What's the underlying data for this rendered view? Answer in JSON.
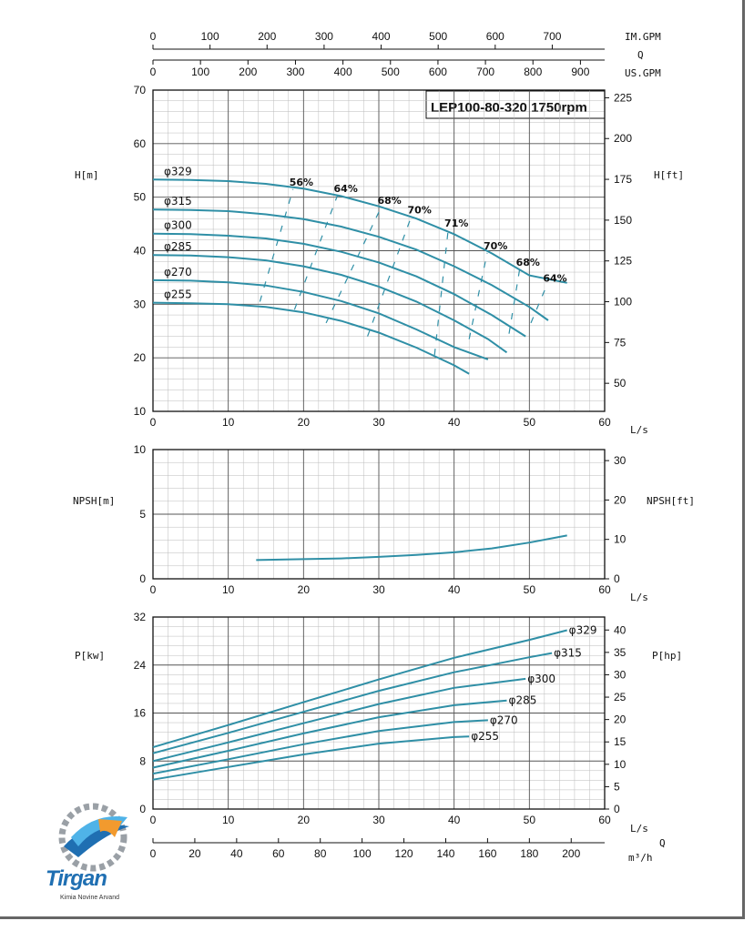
{
  "title": "LEP100-80-320 1750rpm",
  "logo": {
    "name": "Tirgan",
    "subtitle": "Kimia Novine Arvand",
    "colors": {
      "blue": "#1f6fb2",
      "orange": "#f29a2e",
      "gray": "#9aa0a6"
    }
  },
  "axis_labels": {
    "im_gpm": "IM.GPM",
    "q_top": "Q",
    "us_gpm": "US.GPM",
    "h_m": "H[m]",
    "h_ft": "H[ft]",
    "npsh_m": "NPSH[m]",
    "npsh_ft": "NPSH[ft]",
    "p_kw": "P[kw]",
    "p_hp": "P[hp]",
    "ls_1": "L/s",
    "ls_2": "L/s",
    "ls_3": "L/s",
    "m3h": "m³/h",
    "q_bottom": "Q"
  },
  "colors": {
    "curve": "#2f8fa6",
    "grid": "#888888",
    "axis": "#111111"
  },
  "chart_data": [
    {
      "type": "line",
      "panel": "head",
      "title": "LEP100-80-320 1750rpm",
      "xlabel": "L/s",
      "ylabel": "H[m]",
      "y2label": "H[ft]",
      "xlim": [
        0,
        60
      ],
      "ylim": [
        10,
        70
      ],
      "y2lim": [
        32.8,
        229.7
      ],
      "x_ticks": [
        0,
        10,
        20,
        30,
        40,
        50,
        60
      ],
      "y_ticks": [
        10,
        20,
        30,
        40,
        50,
        60,
        70
      ],
      "y2_ticks": [
        50,
        75,
        100,
        125,
        150,
        175,
        200,
        225
      ],
      "top_axes": {
        "im_gpm_ticks": [
          0,
          100,
          200,
          300,
          400,
          500,
          600,
          700
        ],
        "us_gpm_ticks": [
          0,
          100,
          200,
          300,
          400,
          500,
          600,
          700,
          800,
          900
        ]
      },
      "grid": true,
      "series": [
        {
          "name": "φ329",
          "x": [
            0,
            5,
            10,
            15,
            20,
            25,
            30,
            35,
            40,
            45,
            50,
            55
          ],
          "y": [
            53.3,
            53.2,
            53.0,
            52.5,
            51.6,
            50.2,
            48.3,
            46.0,
            43.1,
            39.5,
            35.4,
            34.0
          ]
        },
        {
          "name": "φ315",
          "x": [
            0,
            5,
            10,
            15,
            20,
            25,
            30,
            35,
            40,
            45,
            50,
            52.5
          ],
          "y": [
            47.7,
            47.6,
            47.4,
            46.8,
            45.9,
            44.5,
            42.6,
            40.2,
            37.1,
            33.6,
            29.5,
            27.0
          ]
        },
        {
          "name": "φ300",
          "x": [
            0,
            5,
            10,
            15,
            20,
            25,
            30,
            35,
            40,
            45,
            49.5
          ],
          "y": [
            43.2,
            43.1,
            42.8,
            42.3,
            41.3,
            39.8,
            37.8,
            35.2,
            31.9,
            28.0,
            24.0
          ]
        },
        {
          "name": "φ285",
          "x": [
            0,
            5,
            10,
            15,
            20,
            25,
            30,
            35,
            40,
            44.5,
            47
          ],
          "y": [
            39.2,
            39.1,
            38.8,
            38.2,
            37.1,
            35.5,
            33.3,
            30.5,
            27.0,
            23.5,
            21.0
          ]
        },
        {
          "name": "φ270",
          "x": [
            0,
            5,
            10,
            15,
            20,
            25,
            30,
            35,
            40,
            44.5
          ],
          "y": [
            34.5,
            34.4,
            34.1,
            33.5,
            32.3,
            30.6,
            28.3,
            25.3,
            22.0,
            19.7
          ]
        },
        {
          "name": "φ255",
          "x": [
            0,
            5,
            10,
            15,
            20,
            25,
            30,
            35,
            40,
            42
          ],
          "y": [
            30.3,
            30.2,
            30.0,
            29.5,
            28.5,
            26.9,
            24.7,
            21.9,
            18.6,
            17.0
          ]
        }
      ],
      "efficiency_lines": [
        {
          "label": "56%",
          "from": [
            14.2,
            30.5
          ],
          "to": [
            18.6,
            51.5
          ]
        },
        {
          "label": "64%",
          "from": [
            18.8,
            29.0
          ],
          "to": [
            24.5,
            50.3
          ]
        },
        {
          "label": "68%",
          "from": [
            23.0,
            26.5
          ],
          "to": [
            30.3,
            48.1
          ]
        },
        {
          "label": "70%",
          "from": [
            28.5,
            24.0
          ],
          "to": [
            34.3,
            46.3
          ]
        },
        {
          "label": "71%",
          "from": [
            37.4,
            20.5
          ],
          "to": [
            39.2,
            43.8
          ]
        },
        {
          "label": "70%",
          "from": [
            42.0,
            23.5
          ],
          "to": [
            44.4,
            39.6
          ]
        },
        {
          "label": "68%",
          "from": [
            47.3,
            24.5
          ],
          "to": [
            48.7,
            36.5
          ]
        },
        {
          "label": "64%",
          "from": [
            50.2,
            26.5
          ],
          "to": [
            52.3,
            33.5
          ]
        }
      ]
    },
    {
      "type": "line",
      "panel": "npsh",
      "xlabel": "L/s",
      "ylabel": "NPSH[m]",
      "y2label": "NPSH[ft]",
      "xlim": [
        0,
        60
      ],
      "ylim": [
        0,
        10
      ],
      "y2lim": [
        0,
        32.8
      ],
      "x_ticks": [
        0,
        10,
        20,
        30,
        40,
        50,
        60
      ],
      "y_ticks": [
        0,
        5,
        10
      ],
      "y2_ticks": [
        0,
        10,
        20,
        30
      ],
      "grid": true,
      "series": [
        {
          "x": [
            13.7,
            20,
            25,
            30,
            35,
            40,
            45,
            50,
            55
          ],
          "y": [
            1.45,
            1.52,
            1.58,
            1.7,
            1.85,
            2.05,
            2.35,
            2.8,
            3.35
          ]
        }
      ]
    },
    {
      "type": "line",
      "panel": "power",
      "xlabel": "L/s",
      "ylabel": "P[kw]",
      "y2label": "P[hp]",
      "x2label": "m³/h",
      "xlim": [
        0,
        60
      ],
      "ylim": [
        0,
        32
      ],
      "y2lim": [
        0,
        42.9
      ],
      "x_ticks": [
        0,
        10,
        20,
        30,
        40,
        50,
        60
      ],
      "x2_ticks": [
        0,
        20,
        40,
        60,
        80,
        100,
        120,
        140,
        160,
        180,
        200
      ],
      "y_ticks": [
        0,
        8,
        16,
        24,
        32
      ],
      "y2_ticks": [
        0,
        5,
        10,
        15,
        20,
        25,
        30,
        35,
        40
      ],
      "grid": true,
      "series": [
        {
          "name": "φ329",
          "x": [
            0,
            10,
            20,
            30,
            40,
            50,
            55
          ],
          "y": [
            10.3,
            14.0,
            17.8,
            21.6,
            25.2,
            28.2,
            29.8
          ]
        },
        {
          "name": "φ315",
          "x": [
            0,
            10,
            20,
            30,
            40,
            50,
            53
          ],
          "y": [
            9.3,
            12.7,
            16.2,
            19.7,
            22.8,
            25.3,
            26.0
          ]
        },
        {
          "name": "φ300",
          "x": [
            0,
            10,
            20,
            30,
            40,
            49.5
          ],
          "y": [
            8.0,
            11.1,
            14.3,
            17.5,
            20.2,
            21.7
          ]
        },
        {
          "name": "φ285",
          "x": [
            0,
            10,
            20,
            30,
            40,
            47
          ],
          "y": [
            6.9,
            9.7,
            12.6,
            15.3,
            17.3,
            18.1
          ]
        },
        {
          "name": "φ270",
          "x": [
            0,
            10,
            20,
            30,
            40,
            44.5
          ],
          "y": [
            5.9,
            8.3,
            10.8,
            13.0,
            14.5,
            14.8
          ]
        },
        {
          "name": "φ255",
          "x": [
            0,
            10,
            20,
            30,
            40,
            42
          ],
          "y": [
            4.9,
            7.0,
            9.1,
            10.9,
            12.0,
            12.1
          ]
        }
      ]
    }
  ]
}
